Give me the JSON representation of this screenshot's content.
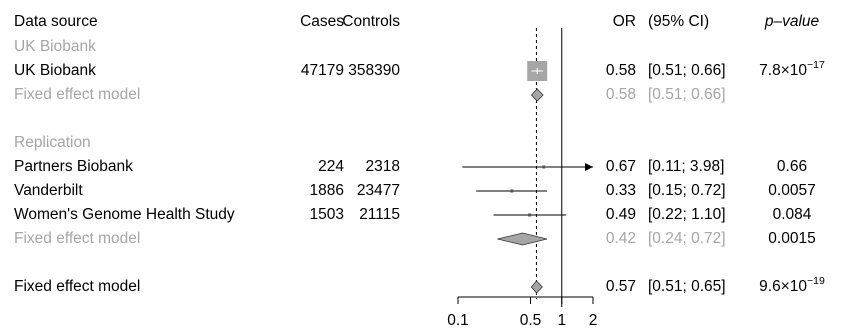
{
  "chart_data": {
    "type": "forest",
    "headers": {
      "source": "Data source",
      "cases": "Cases",
      "controls": "Controls",
      "or": "OR",
      "ci": "(95% CI)",
      "pvalue": "p–value"
    },
    "x_scale": "log",
    "xlim": [
      0.1,
      2
    ],
    "x_ticks": [
      0.1,
      0.5,
      1,
      2
    ],
    "x_tick_labels": [
      "0.1",
      "0.5",
      "1",
      "2"
    ],
    "reference_line": 1,
    "pooled_line": 0.57,
    "rows": [
      {
        "kind": "group",
        "label": "UK Biobank"
      },
      {
        "kind": "study",
        "label": "UK Biobank",
        "cases": "47179",
        "controls": "358390",
        "or": 0.58,
        "lo": 0.51,
        "hi": 0.66,
        "or_text": "0.58",
        "ci_text": "[0.51; 0.66]",
        "p_mant": "7.8",
        "p_exp": "−17",
        "weight": "large"
      },
      {
        "kind": "pooled",
        "gray": true,
        "label": "Fixed effect model",
        "or": 0.58,
        "lo": 0.51,
        "hi": 0.66,
        "or_text": "0.58",
        "ci_text": "[0.51; 0.66]",
        "p_mant": "",
        "p_exp": ""
      },
      {
        "kind": "blank"
      },
      {
        "kind": "group",
        "label": "Replication"
      },
      {
        "kind": "study",
        "label": "Partners Biobank",
        "cases": "224",
        "controls": "2318",
        "or": 0.67,
        "lo": 0.11,
        "hi": 3.98,
        "or_text": "0.67",
        "ci_text": "[0.11; 3.98]",
        "p_mant": "0.66",
        "p_exp": "",
        "arrow": true,
        "weight": "small"
      },
      {
        "kind": "study",
        "label": "Vanderbilt",
        "cases": "1886",
        "controls": "23477",
        "or": 0.33,
        "lo": 0.15,
        "hi": 0.72,
        "or_text": "0.33",
        "ci_text": "[0.15; 0.72]",
        "p_mant": "0.0057",
        "p_exp": "",
        "weight": "small"
      },
      {
        "kind": "study",
        "label": "Women's Genome Health Study",
        "cases": "1503",
        "controls": "21115",
        "or": 0.49,
        "lo": 0.22,
        "hi": 1.1,
        "or_text": "0.49",
        "ci_text": "[0.22; 1.10]",
        "p_mant": "0.084",
        "p_exp": "",
        "weight": "small"
      },
      {
        "kind": "pooled",
        "gray": true,
        "label": "Fixed effect model",
        "or": 0.42,
        "lo": 0.24,
        "hi": 0.72,
        "or_text": "0.42",
        "ci_text": "[0.24; 0.72]",
        "p_mant": "0.0015",
        "p_exp": "",
        "p_black": true
      },
      {
        "kind": "blank"
      },
      {
        "kind": "pooled",
        "gray": false,
        "label": "Fixed effect model",
        "or": 0.57,
        "lo": 0.51,
        "hi": 0.65,
        "or_text": "0.57",
        "ci_text": "[0.51; 0.65]",
        "p_mant": "9.6",
        "p_exp": "−19"
      }
    ]
  }
}
